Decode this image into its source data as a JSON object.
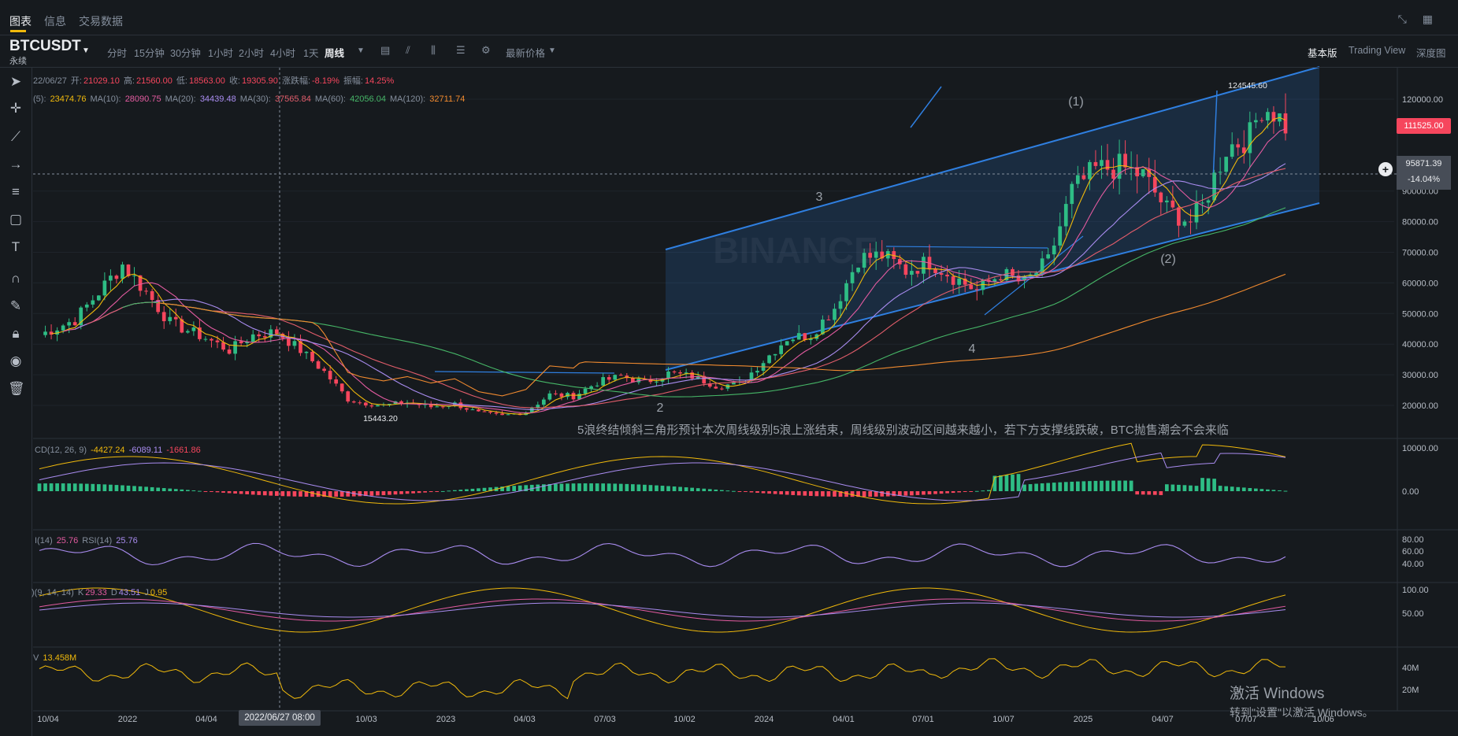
{
  "top_tabs": [
    "图表",
    "信息",
    "交易数据"
  ],
  "symbol": {
    "name": "BTCUSDT",
    "sub": "永续"
  },
  "timeframes": [
    "分时",
    "15分钟",
    "30分钟",
    "1小时",
    "2小时",
    "4小时",
    "1天",
    "周线"
  ],
  "toolbar_extra": {
    "latest_price_label": "最新价格"
  },
  "view_modes": [
    "基本版",
    "Trading View",
    "深度图"
  ],
  "ohlc_legend": {
    "date": "22/06/27",
    "open_label": "开:",
    "open": "21029.10",
    "high_label": "高:",
    "high": "21560.00",
    "low_label": "低:",
    "low": "18563.00",
    "close_label": "收:",
    "close": "19305.90",
    "chg_label": "涨跌幅:",
    "chg": "-8.19%",
    "amp_label": "振幅:",
    "amp": "14.25%"
  },
  "ma_legend": [
    {
      "label": "(5):",
      "value": "23474.76",
      "color": "#f0b90b"
    },
    {
      "label": "MA(10):",
      "value": "28090.75",
      "color": "#e35ba0"
    },
    {
      "label": "MA(20):",
      "value": "34439.48",
      "color": "#a98cf0"
    },
    {
      "label": "MA(30):",
      "value": "37565.84",
      "color": "#e25d6b"
    },
    {
      "label": "MA(60):",
      "value": "42056.04",
      "color": "#46b667"
    },
    {
      "label": "MA(120):",
      "value": "32711.74",
      "color": "#f08a2f"
    }
  ],
  "macd_legend": {
    "label": "CD(12, 26, 9)",
    "v1": "-4427.24",
    "v2": "-6089.11",
    "v3": "-1661.86"
  },
  "rsi_legend": {
    "label1": "I(14)",
    "v1": "25.76",
    "label2": "RSI(14)",
    "v2": "25.76"
  },
  "kdj_legend": {
    "label": ")(9, 14, 14)",
    "k_label": "K",
    "k": "29.33",
    "d_label": "D",
    "d": "43.51",
    "j_label": "J",
    "j": "0.95"
  },
  "vol_legend": {
    "label": "V",
    "value": "13.458M"
  },
  "price_axis": [
    "120000.00",
    "90000.00",
    "80000.00",
    "70000.00",
    "60000.00",
    "50000.00",
    "40000.00",
    "30000.00",
    "20000.00"
  ],
  "macd_axis": [
    "10000.00",
    "0.00"
  ],
  "rsi_axis": [
    "80.00",
    "60.00",
    "40.00"
  ],
  "kdj_axis": [
    "100.00",
    "50.00"
  ],
  "vol_axis": [
    "40M",
    "20M"
  ],
  "time_axis": [
    "10/04",
    "2022",
    "04/04",
    "10/03",
    "2023",
    "04/03",
    "07/03",
    "10/02",
    "2024",
    "04/01",
    "07/01",
    "10/07",
    "2025",
    "04/07",
    "07/07",
    "10/06"
  ],
  "current_price": "111525.00",
  "crosshair": {
    "price": "95871.39",
    "pct": "-14.04%",
    "date": "2022/06/27 08:00"
  },
  "annotations": {
    "wave1": "(1)",
    "wave2": "(2)",
    "wave3": "3",
    "wave4": "4",
    "wave2_small": "2",
    "high_label": "124545.60",
    "low_label": "15443.20",
    "note": "5浪终结倾斜三角形预计本次周线级别5浪上涨结束，周线级别波动区间越来越小，若下方支撑线跌破，BTC抛售潮会不会来临"
  },
  "watermark": {
    "line1": "激活 Windows",
    "line2": "转到\"设置\"以激活 Windows。"
  },
  "brand_watermark": "BINANCE",
  "colors": {
    "up": "#2ebd85",
    "down": "#f6465d",
    "channel": "#2f7fe0",
    "bg": "#161a1e"
  },
  "chart_data": {
    "type": "candlestick",
    "title": "BTCUSDT 周线",
    "x_ticks": [
      "10/04",
      "2022",
      "04/04",
      "10/03",
      "2023",
      "04/03",
      "07/03",
      "10/02",
      "2024",
      "04/01",
      "07/01",
      "10/07",
      "2025",
      "04/07",
      "07/07",
      "10/06"
    ],
    "y_range": [
      15000,
      130000
    ],
    "close_path": [
      [
        "2021-09",
        43000
      ],
      [
        "2021-11",
        66000
      ],
      [
        "2022-01",
        40000
      ],
      [
        "2022-04",
        45000
      ],
      [
        "2022-06",
        19300
      ],
      [
        "2022-10",
        20000
      ],
      [
        "2022-11",
        16000
      ],
      [
        "2023-01",
        23000
      ],
      [
        "2023-04",
        29000
      ],
      [
        "2023-06",
        30000
      ],
      [
        "2023-09",
        26500
      ],
      [
        "2023-12",
        43000
      ],
      [
        "2024-03",
        70000
      ],
      [
        "2024-06",
        63000
      ],
      [
        "2024-08",
        58000
      ],
      [
        "2024-11",
        95000
      ],
      [
        "2024-12",
        100000
      ],
      [
        "2025-02",
        85000
      ],
      [
        "2025-04",
        78000
      ],
      [
        "2025-05",
        105000
      ],
      [
        "2025-07",
        118000
      ],
      [
        "2025-08",
        124545.6
      ],
      [
        "2025-09",
        111525
      ]
    ]
  }
}
